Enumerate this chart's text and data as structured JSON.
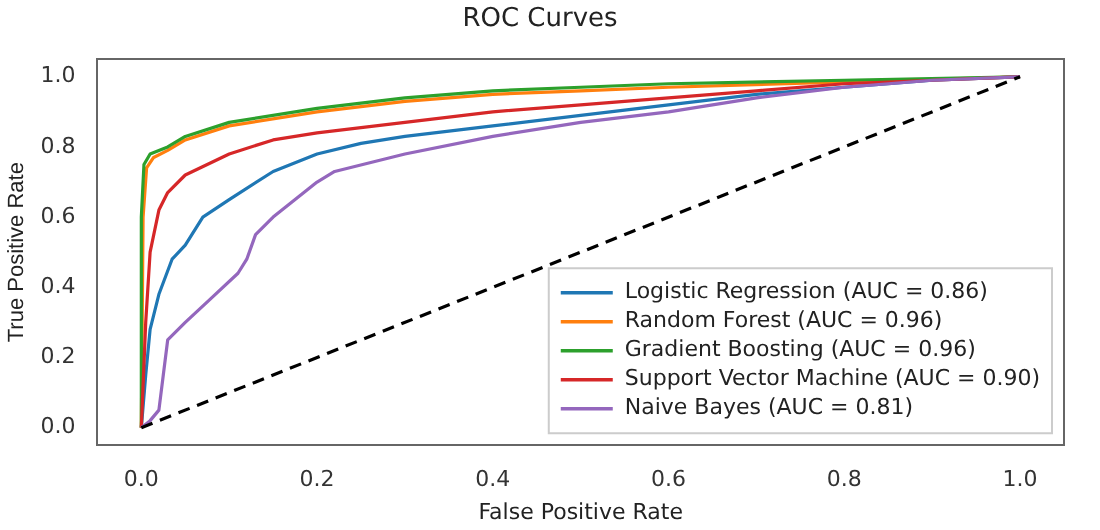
{
  "chart_data": {
    "type": "line",
    "title": "ROC Curves",
    "xlabel": "False Positive Rate",
    "ylabel": "True Positive Rate",
    "xlim": [
      -0.05,
      1.05
    ],
    "ylim": [
      -0.05,
      1.05
    ],
    "xticks": [
      {
        "value": 0,
        "label": "0.0"
      },
      {
        "value": 0.2,
        "label": "0.2"
      },
      {
        "value": 0.4,
        "label": "0.4"
      },
      {
        "value": 0.6,
        "label": "0.6"
      },
      {
        "value": 0.8,
        "label": "0.8"
      },
      {
        "value": 1,
        "label": "1.0"
      }
    ],
    "yticks": [
      {
        "value": 0,
        "label": "0.0"
      },
      {
        "value": 0.2,
        "label": "0.2"
      },
      {
        "value": 0.4,
        "label": "0.4"
      },
      {
        "value": 0.6,
        "label": "0.6"
      },
      {
        "value": 0.8,
        "label": "0.8"
      },
      {
        "value": 1,
        "label": "1.0"
      }
    ],
    "grid": false,
    "legend": "bottom right",
    "marker": "none",
    "series": [
      {
        "name": "Logistic Regression (AUC = 0.86)",
        "color": "#1f77b4",
        "x": [
          0,
          0.005,
          0.01,
          0.02,
          0.035,
          0.05,
          0.07,
          0.1,
          0.15,
          0.2,
          0.25,
          0.3,
          0.4,
          0.5,
          0.6,
          0.7,
          0.8,
          0.9,
          1
        ],
        "values": [
          0,
          0.15,
          0.28,
          0.38,
          0.48,
          0.52,
          0.6,
          0.65,
          0.73,
          0.78,
          0.81,
          0.83,
          0.86,
          0.89,
          0.92,
          0.95,
          0.97,
          0.99,
          1
        ]
      },
      {
        "name": "Random Forest (AUC = 0.96)",
        "color": "#ff7f0e",
        "x": [
          0,
          0.002,
          0.006,
          0.014,
          0.03,
          0.05,
          0.1,
          0.2,
          0.3,
          0.4,
          0.5,
          0.6,
          0.8,
          1
        ],
        "values": [
          0,
          0.6,
          0.74,
          0.77,
          0.79,
          0.82,
          0.86,
          0.9,
          0.93,
          0.95,
          0.96,
          0.97,
          0.985,
          1
        ]
      },
      {
        "name": "Gradient Boosting (AUC = 0.96)",
        "color": "#2ca02c",
        "x": [
          0,
          0,
          0.003,
          0.01,
          0.03,
          0.05,
          0.1,
          0.2,
          0.3,
          0.4,
          0.5,
          0.6,
          0.8,
          1
        ],
        "values": [
          0,
          0.6,
          0.75,
          0.78,
          0.8,
          0.83,
          0.87,
          0.91,
          0.94,
          0.96,
          0.97,
          0.98,
          0.99,
          1
        ]
      },
      {
        "name": "Support Vector Machine (AUC = 0.90)",
        "color": "#d62728",
        "x": [
          0,
          0.005,
          0.01,
          0.02,
          0.03,
          0.05,
          0.1,
          0.15,
          0.2,
          0.3,
          0.4,
          0.5,
          0.6,
          0.7,
          0.8,
          0.9,
          1
        ],
        "values": [
          0,
          0.3,
          0.5,
          0.62,
          0.67,
          0.72,
          0.78,
          0.82,
          0.84,
          0.87,
          0.9,
          0.92,
          0.94,
          0.96,
          0.98,
          0.99,
          1
        ]
      },
      {
        "name": "Naive Bayes (AUC = 0.81)",
        "color": "#9467bd",
        "x": [
          0,
          0.01,
          0.02,
          0.025,
          0.03,
          0.05,
          0.08,
          0.11,
          0.12,
          0.13,
          0.15,
          0.2,
          0.22,
          0.3,
          0.4,
          0.5,
          0.6,
          0.7,
          0.8,
          0.9,
          1
        ],
        "values": [
          0,
          0.02,
          0.05,
          0.15,
          0.25,
          0.3,
          0.37,
          0.44,
          0.48,
          0.55,
          0.6,
          0.7,
          0.73,
          0.78,
          0.83,
          0.87,
          0.9,
          0.94,
          0.97,
          0.99,
          1
        ]
      },
      {
        "color": "#000000",
        "line_style": "dashed",
        "x": [
          0,
          1
        ],
        "values": [
          0,
          1
        ]
      }
    ]
  }
}
